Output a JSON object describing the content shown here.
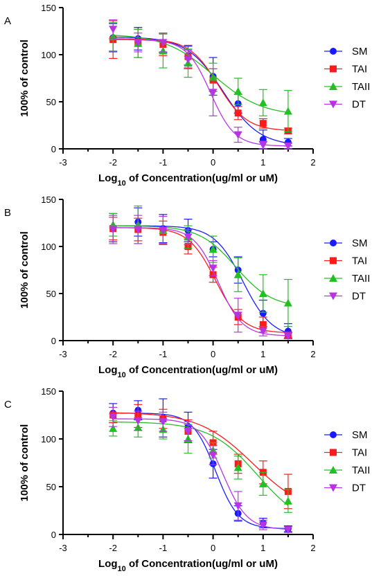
{
  "colors": {
    "SM": "#1a1aff",
    "TAI": "#ff1a1a",
    "TAII": "#22c022",
    "DT": "#b833e6"
  },
  "chart_data": [
    {
      "type": "scatter",
      "panel": "A",
      "xlabel": "Log",
      "xlabel_sub": "10",
      "xlabel_rest": " of Concentration(ug/ml or uM)",
      "ylabel": "100% of control",
      "xlim": [
        -3,
        2
      ],
      "ylim": [
        0,
        150
      ],
      "xticks": [
        -3,
        -2,
        -1,
        0,
        1,
        2
      ],
      "yticks": [
        0,
        50,
        100,
        150
      ],
      "legend_position": "right",
      "x": [
        -2,
        -1.5,
        -1,
        -0.5,
        0,
        0.5,
        1,
        1.5
      ],
      "series": [
        {
          "name": "SM",
          "marker": "circle",
          "values": [
            118,
            117,
            112,
            99,
            77,
            48,
            10,
            7
          ],
          "errors": [
            15,
            12,
            10,
            10,
            20,
            10,
            10,
            4
          ],
          "fit": {
            "bottom": 3,
            "top": 119,
            "logEC50": 0.2,
            "hill": 1.2
          }
        },
        {
          "name": "TAI",
          "marker": "square",
          "values": [
            116,
            112,
            111,
            98,
            73,
            38,
            27,
            19
          ],
          "errors": [
            20,
            15,
            12,
            12,
            12,
            7,
            5,
            3
          ],
          "fit": {
            "bottom": 19,
            "top": 117,
            "logEC50": 0.1,
            "hill": 1.5
          }
        },
        {
          "name": "TAII",
          "marker": "triangle-up",
          "values": [
            119,
            112,
            104,
            91,
            76,
            61,
            49,
            40
          ],
          "errors": [
            15,
            15,
            18,
            15,
            15,
            14,
            14,
            22
          ],
          "fit": {
            "bottom": 35,
            "top": 122,
            "logEC50": 0.0,
            "hill": 0.9
          }
        },
        {
          "name": "DT",
          "marker": "triangle-down",
          "values": [
            127,
            113,
            113,
            95,
            60,
            15,
            4,
            3
          ],
          "errors": [
            10,
            10,
            10,
            10,
            25,
            8,
            4,
            3
          ],
          "fit": {
            "bottom": 3,
            "top": 116,
            "logEC50": -0.05,
            "hill": 1.8
          }
        }
      ]
    },
    {
      "type": "scatter",
      "panel": "B",
      "xlabel": "Log",
      "xlabel_sub": "10",
      "xlabel_rest": " of Concentration(ug/ml or uM)",
      "ylabel": "100% of control",
      "xlim": [
        -3,
        2
      ],
      "ylim": [
        0,
        150
      ],
      "xticks": [
        -3,
        -2,
        -1,
        0,
        1,
        2
      ],
      "yticks": [
        0,
        50,
        100,
        150
      ],
      "legend_position": "right",
      "x": [
        -2,
        -1.5,
        -1,
        -0.5,
        0,
        0.5,
        1,
        1.5
      ],
      "series": [
        {
          "name": "SM",
          "marker": "circle",
          "values": [
            120,
            126,
            119,
            117,
            97,
            75,
            29,
            10
          ],
          "errors": [
            15,
            15,
            15,
            12,
            8,
            14,
            14,
            8
          ],
          "fit": {
            "bottom": 3,
            "top": 122,
            "logEC50": 0.6,
            "hill": 1.5
          }
        },
        {
          "name": "TAI",
          "marker": "square",
          "values": [
            119,
            118,
            115,
            100,
            70,
            25,
            17,
            6
          ],
          "errors": [
            12,
            12,
            12,
            8,
            8,
            8,
            8,
            3
          ],
          "fit": {
            "bottom": 8,
            "top": 120,
            "logEC50": 0.05,
            "hill": 1.6
          }
        },
        {
          "name": "TAII",
          "marker": "triangle-up",
          "values": [
            123,
            123,
            117,
            110,
            97,
            70,
            50,
            40
          ],
          "errors": [
            12,
            20,
            15,
            12,
            14,
            18,
            20,
            25
          ],
          "fit": {
            "bottom": 35,
            "top": 122,
            "logEC50": 0.45,
            "hill": 1.2
          }
        },
        {
          "name": "DT",
          "marker": "triangle-down",
          "values": [
            118,
            118,
            117,
            110,
            77,
            27,
            10,
            5
          ],
          "errors": [
            15,
            15,
            15,
            8,
            8,
            18,
            5,
            3
          ],
          "fit": {
            "bottom": 5,
            "top": 120,
            "logEC50": 0.1,
            "hill": 1.8
          }
        }
      ]
    },
    {
      "type": "scatter",
      "panel": "C",
      "xlabel": "Log",
      "xlabel_sub": "10",
      "xlabel_rest": " of Concentration(ug/ml or uM)",
      "ylabel": "100% of control",
      "xlim": [
        -3,
        2
      ],
      "ylim": [
        0,
        150
      ],
      "xticks": [
        -3,
        -2,
        -1,
        0,
        1,
        2
      ],
      "yticks": [
        0,
        50,
        100,
        150
      ],
      "legend_position": "right",
      "x": [
        -2,
        -1.5,
        -1,
        -0.5,
        0,
        0.5,
        1,
        1.5
      ],
      "series": [
        {
          "name": "SM",
          "marker": "circle",
          "values": [
            127,
            130,
            122,
            113,
            74,
            22,
            12,
            6
          ],
          "errors": [
            10,
            10,
            20,
            15,
            15,
            8,
            5,
            3
          ],
          "fit": {
            "bottom": 6,
            "top": 127,
            "logEC50": 0.05,
            "hill": 1.9
          }
        },
        {
          "name": "TAI",
          "marker": "square",
          "values": [
            125,
            124,
            121,
            108,
            96,
            74,
            65,
            45
          ],
          "errors": [
            8,
            12,
            10,
            12,
            12,
            10,
            12,
            18
          ],
          "fit": {
            "bottom": 20,
            "top": 128,
            "logEC50": 0.8,
            "hill": 0.8
          }
        },
        {
          "name": "TAII",
          "marker": "triangle-up",
          "values": [
            111,
            112,
            110,
            100,
            88,
            70,
            53,
            35
          ],
          "errors": [
            8,
            10,
            10,
            15,
            8,
            12,
            12,
            12
          ],
          "fit": {
            "bottom": 5,
            "top": 118,
            "logEC50": 0.9,
            "hill": 0.9
          }
        },
        {
          "name": "DT",
          "marker": "triangle-down",
          "values": [
            123,
            119,
            118,
            108,
            83,
            30,
            10,
            5
          ],
          "errors": [
            10,
            10,
            10,
            10,
            10,
            15,
            5,
            3
          ],
          "fit": {
            "bottom": 5,
            "top": 121,
            "logEC50": 0.2,
            "hill": 1.8
          }
        }
      ]
    }
  ]
}
